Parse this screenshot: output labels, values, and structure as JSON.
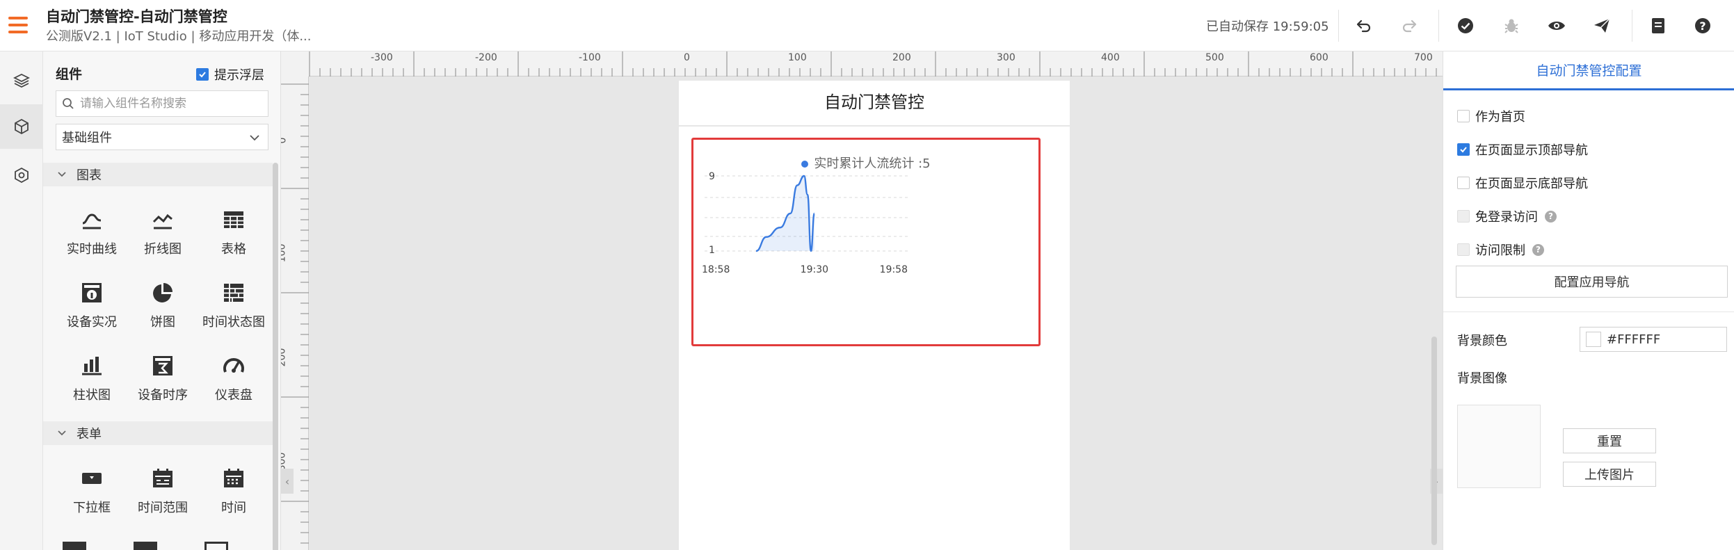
{
  "header": {
    "title": "自动门禁管控-自动门禁管控",
    "subtitle": "公测版V2.1 | IoT Studio | 移动应用开发（体...",
    "autosave": "已自动保存 19:59:05",
    "icons": [
      "undo-icon",
      "redo-icon",
      "check-icon",
      "bug-icon",
      "eye-icon",
      "send-icon",
      "document-icon",
      "help-icon"
    ]
  },
  "panel": {
    "title": "组件",
    "hint_label": "提示浮层",
    "hint_checked": true,
    "search_placeholder": "请输入组件名称搜索",
    "category": "基础组件",
    "sections": [
      {
        "label": "图表",
        "items": [
          {
            "label": "实时曲线",
            "icon": "realtime-curve-icon"
          },
          {
            "label": "折线图",
            "icon": "line-chart-icon"
          },
          {
            "label": "表格",
            "icon": "table-icon"
          },
          {
            "label": "设备实况",
            "icon": "device-live-icon"
          },
          {
            "label": "饼图",
            "icon": "pie-chart-icon"
          },
          {
            "label": "时间状态图",
            "icon": "time-status-icon"
          },
          {
            "label": "柱状图",
            "icon": "bar-chart-icon"
          },
          {
            "label": "设备时序",
            "icon": "device-timeseries-icon"
          },
          {
            "label": "仪表盘",
            "icon": "gauge-icon"
          }
        ]
      },
      {
        "label": "表单",
        "items": [
          {
            "label": "下拉框",
            "icon": "dropdown-icon"
          },
          {
            "label": "时间范围",
            "icon": "time-range-icon"
          },
          {
            "label": "时间",
            "icon": "calendar-icon"
          }
        ]
      }
    ]
  },
  "canvas": {
    "hruler": [
      "-300",
      "-200",
      "-100",
      "0",
      "100",
      "200",
      "300",
      "400",
      "500",
      "600",
      "700"
    ],
    "vruler": [
      "0",
      "100",
      "200",
      "300"
    ],
    "page_title": "自动门禁管控",
    "chart_data": {
      "type": "area",
      "legend": "实时累计人流统计 :5",
      "x_ticks": [
        "18:58",
        "19:30",
        "19:58"
      ],
      "y_ticks": [
        "9",
        "1"
      ],
      "series": [
        {
          "name": "实时累计人流统计",
          "color": "#3a7be0",
          "x": [
            "19:13",
            "19:16",
            "19:20",
            "19:23",
            "19:25",
            "19:27",
            "19:28",
            "19:29",
            "19:30"
          ],
          "values": [
            1,
            2.5,
            3.5,
            5,
            8,
            9,
            7,
            1,
            5
          ]
        }
      ]
    }
  },
  "rightpanel": {
    "title": "自动门禁管控配置",
    "options": [
      {
        "label": "作为首页",
        "checked": false,
        "disabled": false,
        "help": false
      },
      {
        "label": "在页面显示顶部导航",
        "checked": true,
        "disabled": false,
        "help": false
      },
      {
        "label": "在页面显示底部导航",
        "checked": false,
        "disabled": false,
        "help": false
      },
      {
        "label": "免登录访问",
        "checked": false,
        "disabled": true,
        "help": true
      },
      {
        "label": "访问限制",
        "checked": false,
        "disabled": true,
        "help": true
      }
    ],
    "nav_button": "配置应用导航",
    "bg_color_label": "背景颜色",
    "bg_color_value": "#FFFFFF",
    "bg_image_label": "背景图像",
    "reset_button": "重置",
    "upload_button": "上传图片",
    "help_glyph": "?"
  }
}
